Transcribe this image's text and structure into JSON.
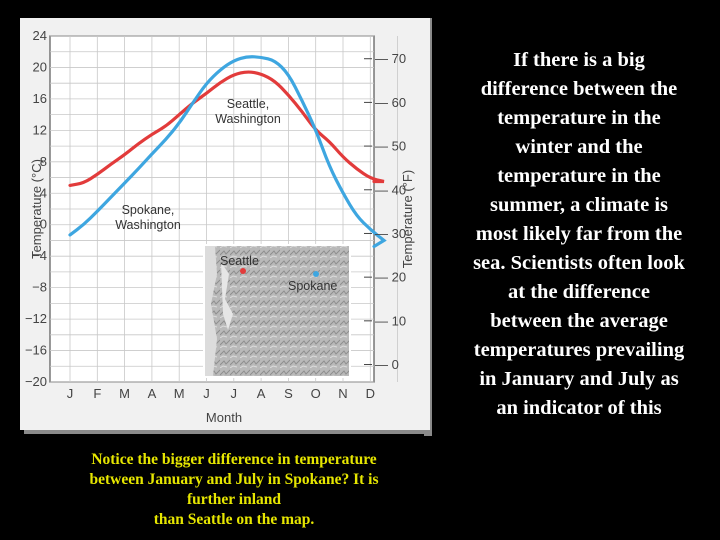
{
  "chart_data": {
    "type": "line",
    "categories": [
      "J",
      "F",
      "M",
      "A",
      "M",
      "J",
      "J",
      "A",
      "S",
      "O",
      "N",
      "D"
    ],
    "xlabel": "Month",
    "ylabel": "Temperature (°C)",
    "ylabel_right": "Temperature (°F)",
    "ylim": [
      -20,
      24
    ],
    "yticks": [
      "24",
      "20",
      "16",
      "12",
      "8",
      "4",
      "0",
      "−4",
      "−8",
      "−12",
      "−16",
      "−20"
    ],
    "yticks_values": [
      24,
      20,
      16,
      12,
      8,
      4,
      0,
      -4,
      -8,
      -12,
      -16,
      -20
    ],
    "right_ticks": [
      "70",
      "60",
      "50",
      "40",
      "30",
      "20",
      "10",
      "0"
    ],
    "right_ticks_values": [
      70,
      60,
      50,
      40,
      30,
      20,
      10,
      0
    ],
    "grid": true,
    "series": [
      {
        "name": "Seattle, Washington",
        "name_lines": [
          "Seattle,",
          "Washington"
        ],
        "color": "#e23b3b",
        "x": [
          0,
          0.5,
          1,
          1.5,
          2,
          2.5,
          3,
          3.5,
          4,
          4.5,
          5,
          5.5,
          6,
          6.5,
          7,
          7.5,
          8,
          8.5,
          9,
          9.5,
          10,
          10.5,
          11,
          11.5
        ],
        "values": [
          5,
          5.3,
          6.4,
          7.7,
          8.9,
          10.3,
          11.5,
          12.5,
          14,
          15.5,
          16.7,
          18.1,
          19.1,
          19.5,
          19.2,
          18.3,
          16.5,
          14.4,
          12,
          10.6,
          8.6,
          7.1,
          5.9,
          5.5
        ]
      },
      {
        "name": "Spokane, Washington",
        "name_lines": [
          "Spokane,",
          "Washington"
        ],
        "color": "#3ea6e0",
        "x": [
          0,
          0.5,
          1,
          1.5,
          2,
          2.5,
          3,
          3.5,
          4,
          4.5,
          5,
          5.5,
          6,
          6.5,
          7,
          7.5,
          8,
          8.5,
          9,
          9.5,
          10,
          10.5,
          11,
          11.5
        ],
        "values": [
          -1.3,
          0,
          1.7,
          3.5,
          5.3,
          7.1,
          9,
          10.8,
          12.9,
          15.5,
          18,
          19.7,
          20.9,
          21.4,
          21.3,
          20.9,
          19.2,
          15.8,
          12.1,
          7.4,
          4,
          1.1,
          -0.6,
          -2
        ]
      }
    ],
    "inset_map": {
      "labels": [
        "Seattle",
        "Spokane"
      ],
      "seattle_color": "#e23b3b",
      "spokane_color": "#3ea6e0"
    }
  },
  "text": {
    "right_paragraph": "If there is a big\ndifference between the\ntemperature in the\nwinter and the\ntemperature in the\nsummer, a climate is\nmost likely far from the\nsea. Scientists often look\nat the difference\nbetween the average\ntemperatures prevailing\nin January and July as\nan indicator of this",
    "bottom_caption": "Notice the bigger difference in temperature\nbetween January and July in Spokane? It is\nfurther inland\nthan Seattle on the map."
  }
}
